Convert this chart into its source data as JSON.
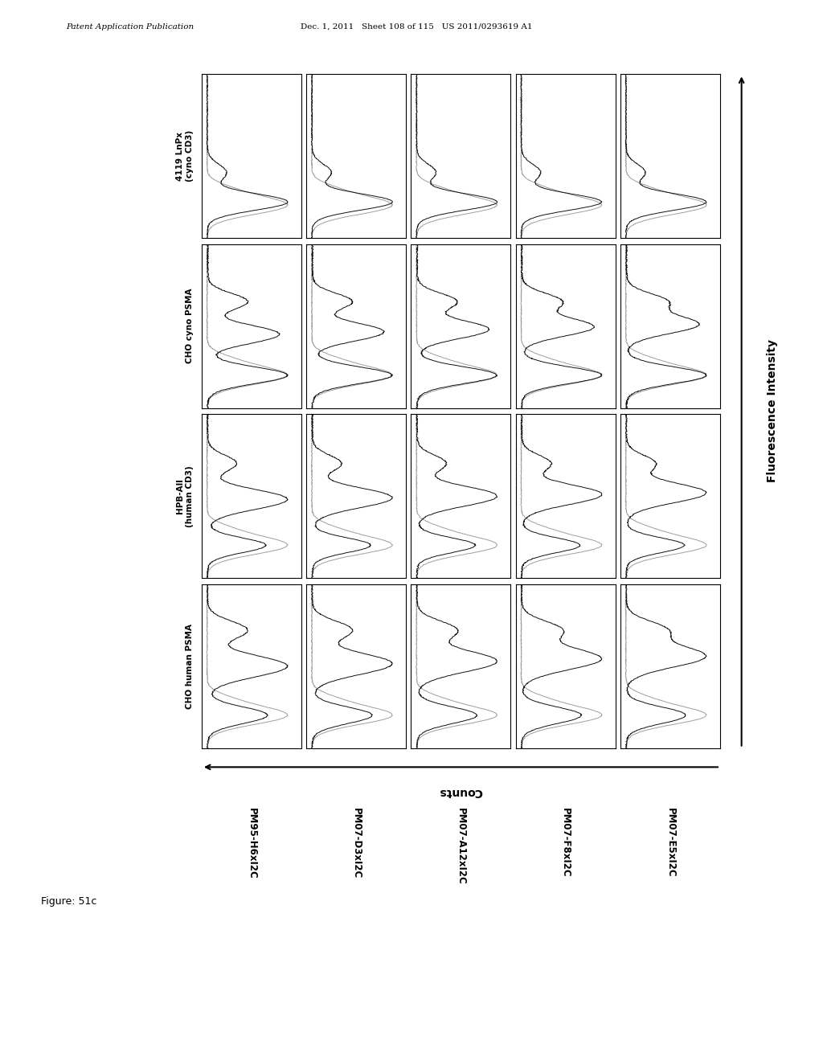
{
  "header_left": "Patent Application Publication",
  "header_mid": "Dec. 1, 2011   Sheet 108 of 115   US 2011/0293619 A1",
  "figure_label": "Figure: 51c",
  "row_labels": [
    "CHO human PSMA",
    "HPB-All\n(human CD3)",
    "CHO cyno PSMA",
    "4119 LnPx\n(cyno CD3)"
  ],
  "col_labels": [
    "PM95-H6xI2C",
    "PM07-D3xI2C",
    "PM07-A12xI2C",
    "PM07-F8xI2C",
    "PM07-E5xI2C"
  ],
  "x_axis_label": "Counts",
  "y_axis_label": "Fluorescence Intensity",
  "bg_color": "#ffffff",
  "line_color_gray": "#999999",
  "line_color_black": "#111111"
}
